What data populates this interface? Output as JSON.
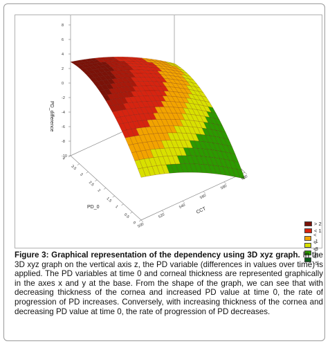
{
  "chart_data": {
    "type": "surface3d",
    "title": "",
    "x_axis": {
      "label": "CCT",
      "ticks": [
        "500",
        "520",
        "540",
        "560",
        "580",
        "600"
      ],
      "range": [
        500,
        600
      ]
    },
    "y_axis": {
      "label": "PD_0",
      "ticks": [
        "0",
        "0.5",
        "1",
        "1.5",
        "2",
        "2.5",
        "3",
        "3.5",
        "4"
      ],
      "range": [
        0,
        4
      ]
    },
    "z_axis": {
      "label": "PD_difference",
      "ticks": [
        "10",
        "8",
        "6",
        "4",
        "2",
        "0",
        "-2",
        "-4",
        "-6",
        "-8",
        "-10"
      ],
      "range": [
        -10,
        10
      ]
    },
    "surface_model": "approximate quadratic fit z(CCT, PD_0), peak near CCT 500, PD_0 4 at about 2.5; minimum near CCT 600, PD_0 0 at about -7",
    "legend": {
      "placement": "bottom-right",
      "entries": [
        {
          "label": "> 2",
          "color": "#7a1208"
        },
        {
          "label": "< 1",
          "color": "#d62410"
        },
        {
          "label": "< -1",
          "color": "#f2a400"
        },
        {
          "label": "< -3",
          "color": "#d8e000"
        },
        {
          "label": "< -5",
          "color": "#2c9a00"
        },
        {
          "label": "< -5",
          "color": "#0e5a1c"
        }
      ]
    }
  },
  "caption": {
    "lead": "Figure 3: Graphical representation of the dependency using 3D xyz graph.",
    "body": " In the 3D xyz graph on the vertical axis z, the PD variable (differences in values over time) is applied. The PD variables at time 0 and corneal thickness are represented graphically in the axes x and y at the base. From the shape of the graph, we can see that with decreasing thickness of the cornea and increased PD value at time 0, the rate of progression of PD increases. Conversely, with increasing thickness of the cornea and decreasing PD value at time 0, the rate of progression of PD decreases."
  }
}
